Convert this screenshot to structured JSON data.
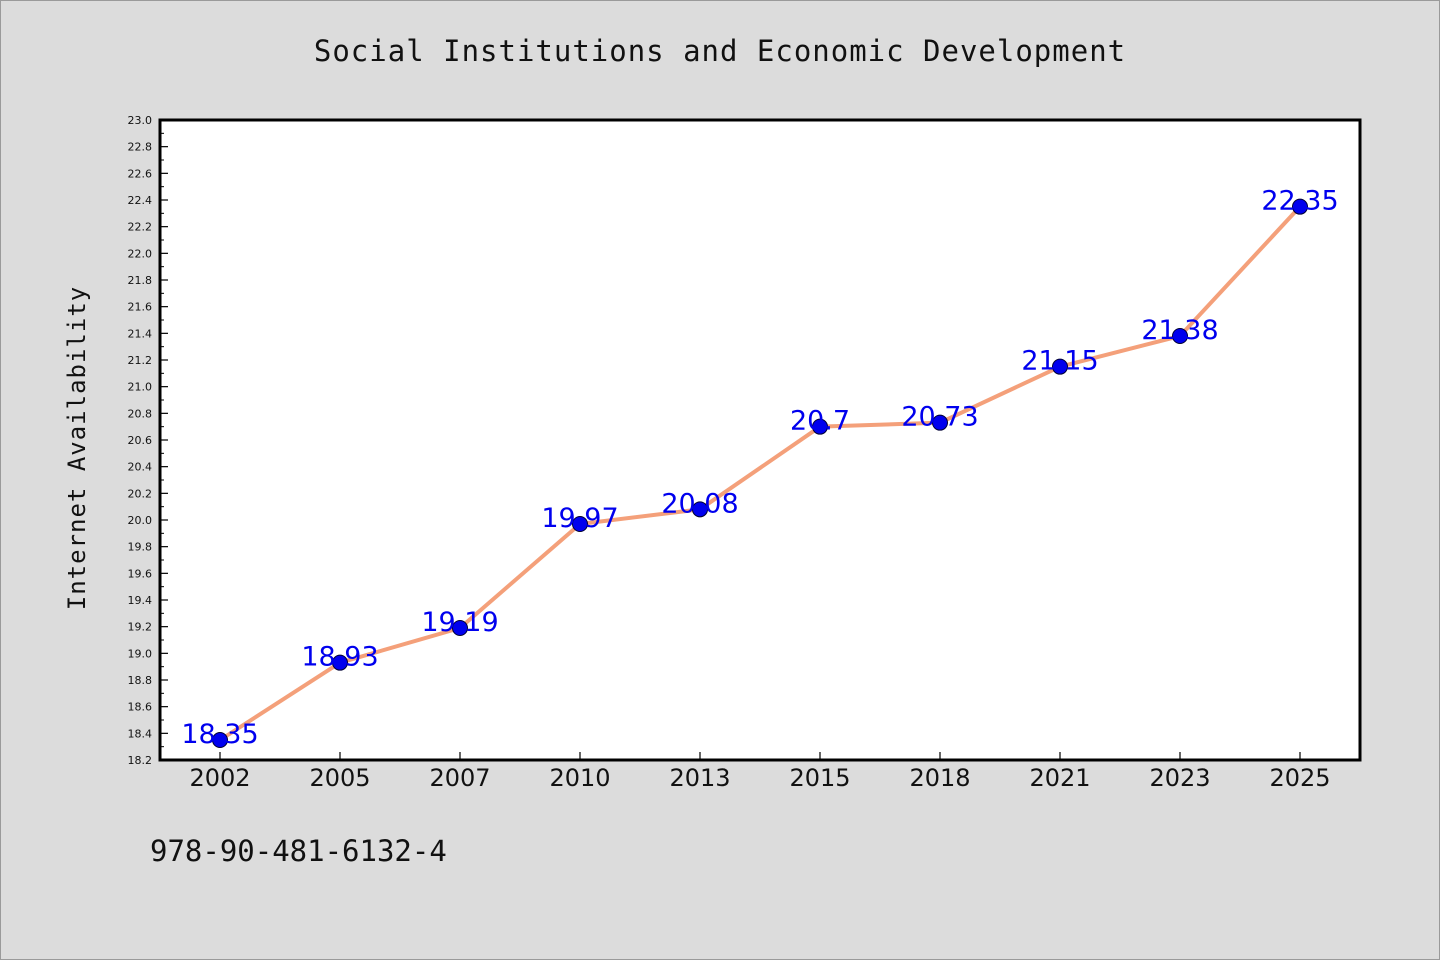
{
  "chart_data": {
    "type": "line",
    "title": "Social Institutions and Economic Development",
    "xlabel": "",
    "ylabel": "Internet Availability",
    "categories": [
      "2002",
      "2005",
      "2007",
      "2010",
      "2013",
      "2015",
      "2018",
      "2021",
      "2023",
      "2025"
    ],
    "series": [
      {
        "values": [
          18.35,
          18.93,
          19.19,
          19.97,
          20.08,
          20.7,
          20.73,
          21.15,
          21.38,
          22.35
        ],
        "point_labels": [
          "18.35",
          "18.93",
          "19.19",
          "19.97",
          "20.08",
          "20.7",
          "20.73",
          "21.15",
          "21.38",
          "22.35"
        ],
        "line_color": "#f4a07a",
        "marker_color": "#0000ee"
      }
    ],
    "ylim": [
      18.2,
      23.0
    ],
    "y_ticks": [
      "18.2",
      "18.4",
      "18.6",
      "18.8",
      "19.0",
      "19.2",
      "19.4",
      "19.6",
      "19.8",
      "20.0",
      "20.2",
      "20.4",
      "20.6",
      "20.8",
      "21.0",
      "21.2",
      "21.4",
      "21.6",
      "21.8",
      "22.0",
      "22.2",
      "22.4",
      "22.6",
      "22.8",
      "23.0"
    ],
    "grid": false,
    "legend": "none"
  },
  "footer": {
    "isbn": "978-90-481-6132-4"
  },
  "colors": {
    "background": "#dcdcdc",
    "plot_background": "#ffffff",
    "axis": "#000000",
    "label_text": "#0000ee"
  }
}
